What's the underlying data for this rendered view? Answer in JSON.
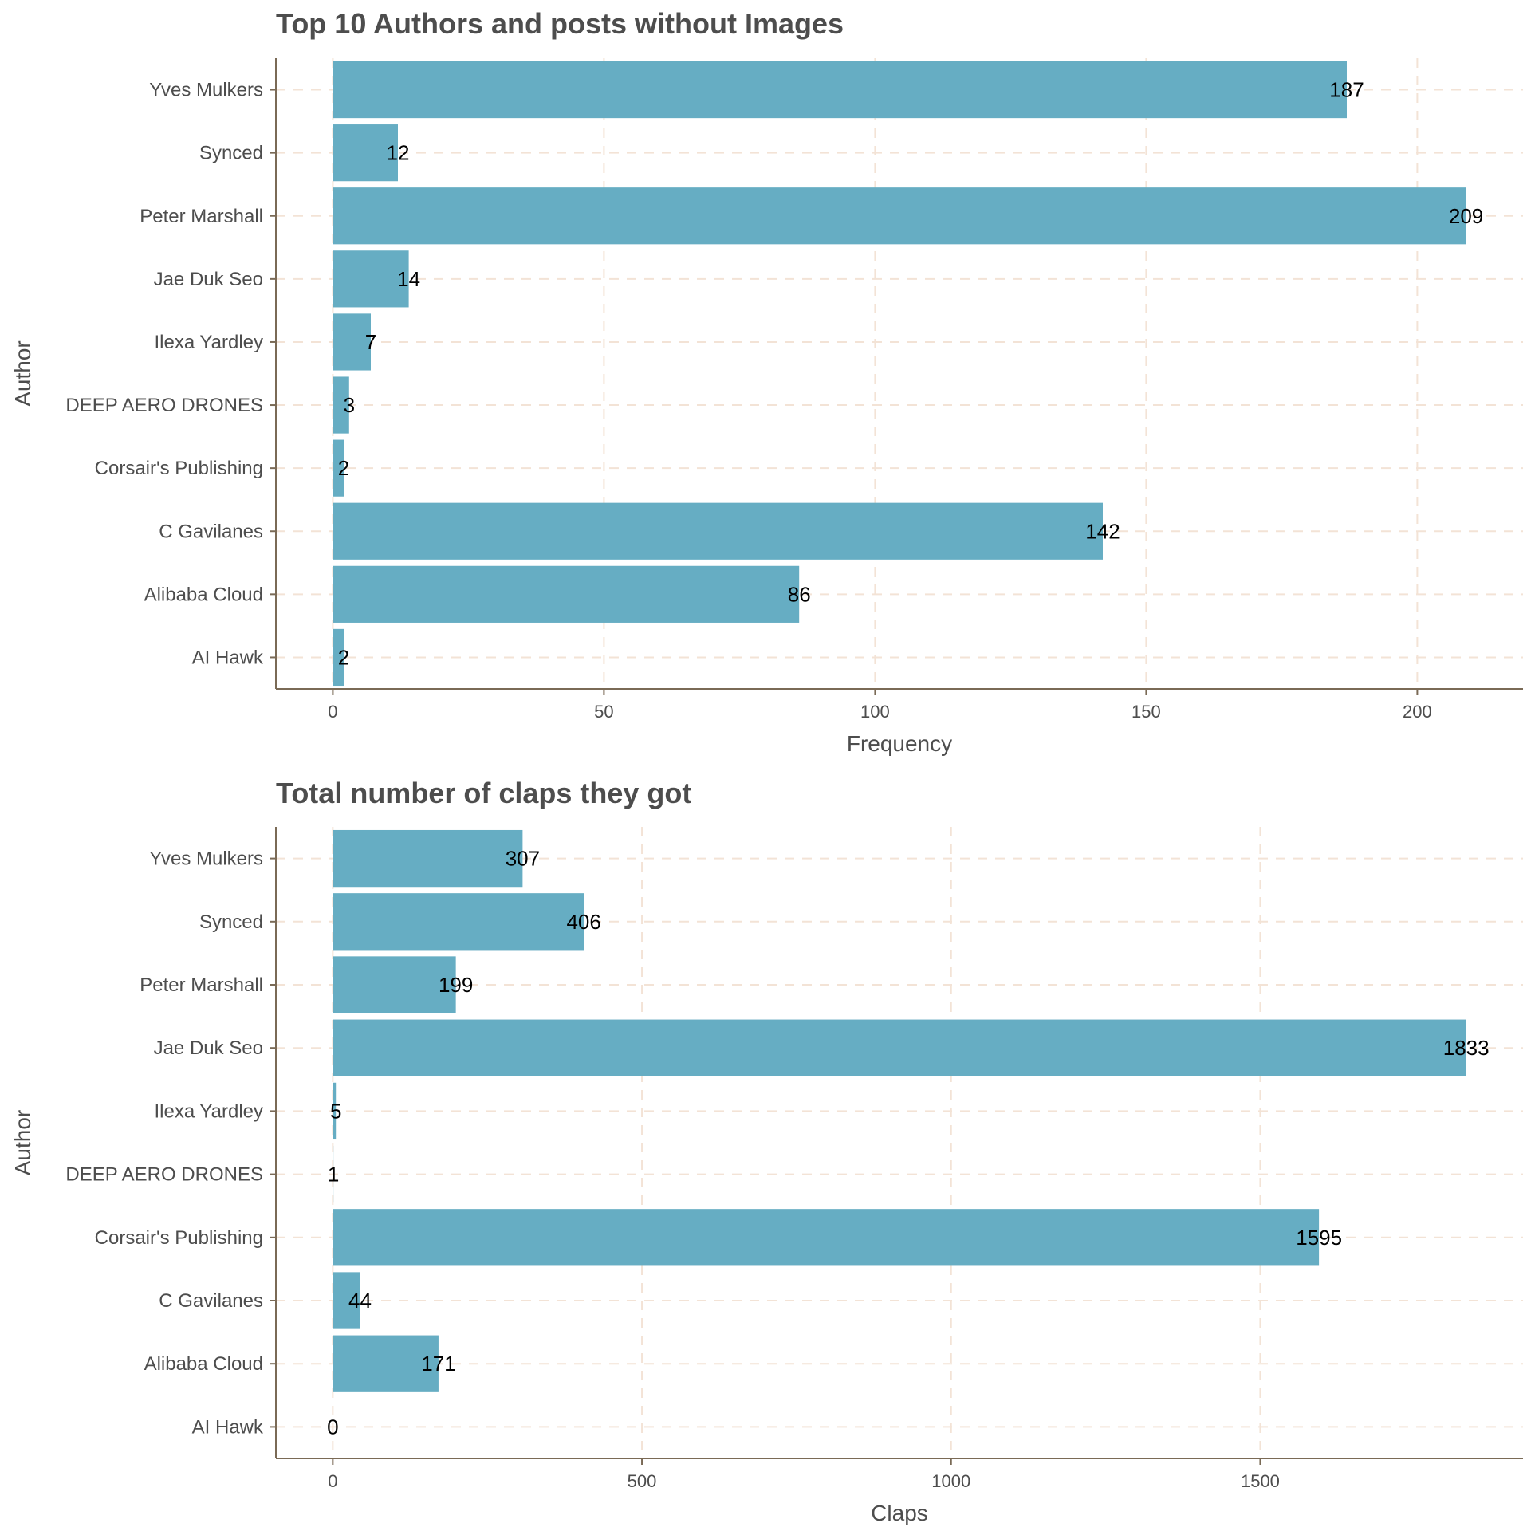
{
  "chart_data": [
    {
      "type": "bar",
      "orientation": "horizontal",
      "title": "Top 10 Authors and posts without Images",
      "xlabel": "Frequency",
      "ylabel": "Author",
      "categories": [
        "Yves Mulkers",
        "Synced",
        "Peter Marshall",
        "Jae Duk Seo",
        "Ilexa Yardley",
        "DEEP AERO DRONES",
        "Corsair's Publishing",
        "C Gavilanes",
        "Alibaba Cloud",
        "AI Hawk"
      ],
      "values": [
        187,
        12,
        209,
        14,
        7,
        3,
        2,
        142,
        86,
        2
      ],
      "xlim": [
        -10.5,
        219.5
      ],
      "xticks": [
        0,
        50,
        100,
        150,
        200
      ],
      "grid": true,
      "bar_color": "#66adc3"
    },
    {
      "type": "bar",
      "orientation": "horizontal",
      "title": "Total number of claps they got",
      "xlabel": "Claps",
      "ylabel": "Author",
      "categories": [
        "Yves Mulkers",
        "Synced",
        "Peter Marshall",
        "Jae Duk Seo",
        "Ilexa Yardley",
        "DEEP AERO DRONES",
        "Corsair's Publishing",
        "C Gavilanes",
        "Alibaba Cloud",
        "AI Hawk"
      ],
      "values": [
        307,
        406,
        199,
        1833,
        5,
        1,
        1595,
        44,
        171,
        0
      ],
      "xlim": [
        -92,
        1925
      ],
      "xticks": [
        0,
        500,
        1000,
        1500
      ],
      "grid": true,
      "bar_color": "#66adc3"
    }
  ]
}
